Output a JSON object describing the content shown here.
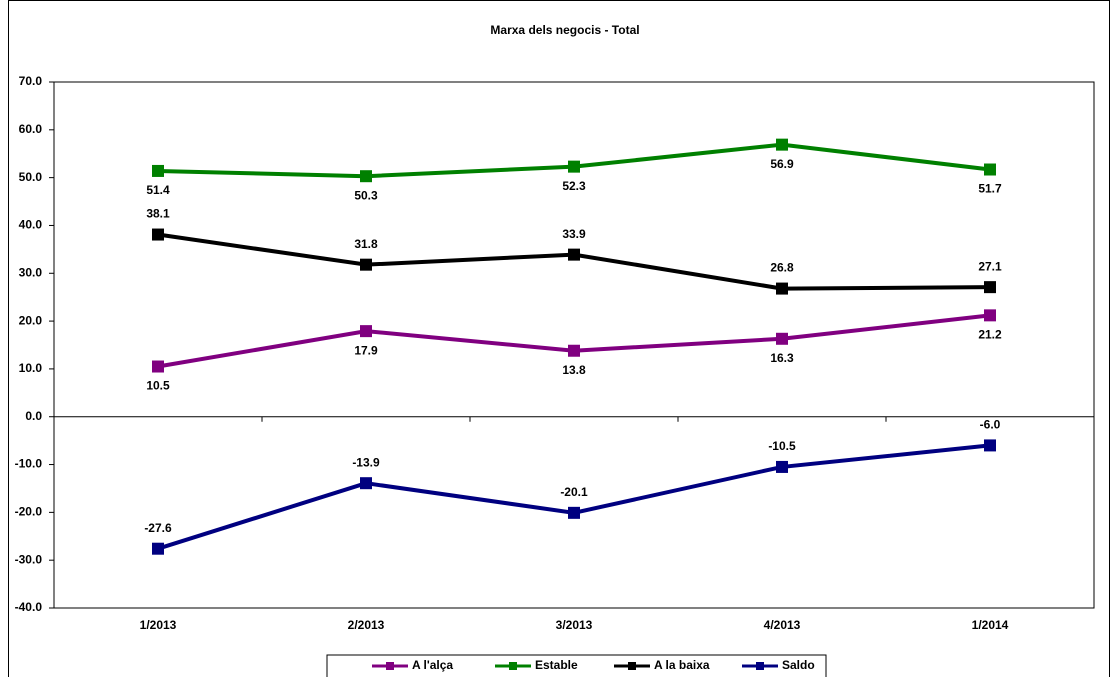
{
  "chart_data": {
    "type": "line",
    "title": "Marxa dels negocis - Total",
    "categories": [
      "1/2013",
      "2/2013",
      "3/2013",
      "4/2013",
      "1/2014"
    ],
    "series": [
      {
        "name": "A l'alça",
        "color": "#800080",
        "values": [
          10.5,
          17.9,
          13.8,
          16.3,
          21.2
        ]
      },
      {
        "name": "Estable",
        "color": "#008000",
        "values": [
          51.4,
          50.3,
          52.3,
          56.9,
          51.7
        ]
      },
      {
        "name": "A la baixa",
        "color": "#000000",
        "values": [
          38.1,
          31.8,
          33.9,
          26.8,
          27.1
        ]
      },
      {
        "name": "Saldo",
        "color": "#000080",
        "values": [
          -27.6,
          -13.9,
          -20.1,
          -10.5,
          -6
        ],
        "value_labels": [
          "-27.6",
          "-13.9",
          "-20.1",
          "-10.5",
          "-6.0"
        ]
      }
    ],
    "ylim": [
      -40,
      70
    ],
    "yticks": [
      {
        "value": -40,
        "label": "-40.0"
      },
      {
        "value": -30,
        "label": "-30.0"
      },
      {
        "value": -20,
        "label": "-20.0"
      },
      {
        "value": -10,
        "label": "-10.0"
      },
      {
        "value": 0,
        "label": "0.0"
      },
      {
        "value": 10,
        "label": "10.0"
      },
      {
        "value": 20,
        "label": "20.0"
      },
      {
        "value": 30,
        "label": "30.0"
      },
      {
        "value": 40,
        "label": "40.0"
      },
      {
        "value": 50,
        "label": "50.0"
      },
      {
        "value": 60,
        "label": "60.0"
      },
      {
        "value": 70,
        "label": "70.0"
      }
    ],
    "legend": "bottom"
  }
}
